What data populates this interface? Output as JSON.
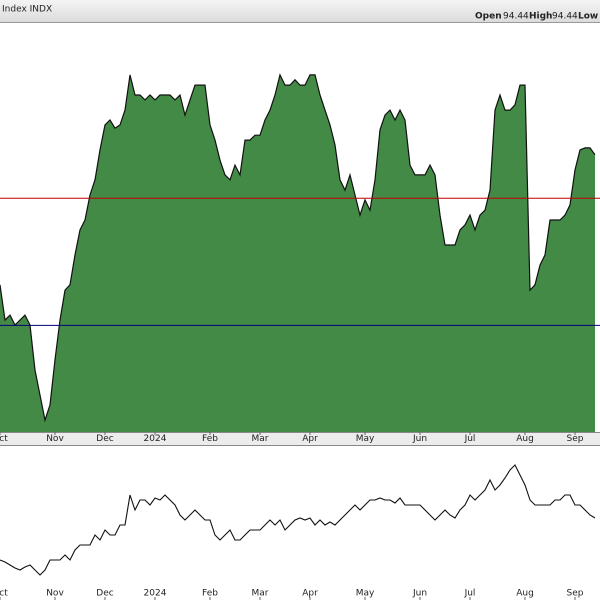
{
  "header": {
    "symbol": "Index INDX",
    "open_label": "Open",
    "open": 94.44,
    "high_label": "High",
    "high": 94.44,
    "low_label": "Low"
  },
  "chart_data": [
    {
      "type": "area",
      "color": "#428a46",
      "line_color": "#111111",
      "ylim": [
        0,
        100
      ],
      "hlines": [
        {
          "value": 57,
          "color": "#c00000"
        },
        {
          "value": 26,
          "color": "#00007a"
        }
      ],
      "categories": [
        "Oct",
        null,
        null,
        null,
        null,
        null,
        null,
        null,
        null,
        null,
        null,
        "Nov",
        null,
        null,
        null,
        null,
        null,
        null,
        null,
        null,
        null,
        "Dec",
        null,
        null,
        null,
        null,
        null,
        null,
        null,
        null,
        null,
        "2024",
        null,
        null,
        null,
        null,
        null,
        null,
        null,
        null,
        null,
        null,
        "Feb",
        null,
        null,
        null,
        null,
        null,
        null,
        null,
        null,
        null,
        "Mar",
        null,
        null,
        null,
        null,
        null,
        null,
        null,
        null,
        null,
        "Apr",
        null,
        null,
        null,
        null,
        null,
        null,
        null,
        null,
        null,
        null,
        "May",
        null,
        null,
        null,
        null,
        null,
        null,
        null,
        null,
        null,
        null,
        "Jun",
        null,
        null,
        null,
        null,
        null,
        null,
        null,
        null,
        null,
        "Jul",
        null,
        null,
        null,
        null,
        null,
        null,
        null,
        null,
        null,
        null,
        "Aug",
        null,
        null,
        null,
        null,
        null,
        null,
        null,
        null,
        null,
        "Sep",
        null,
        null,
        null,
        null
      ],
      "values": [
        35.9,
        27.3,
        28.5,
        26.1,
        27.3,
        28.5,
        26.1,
        15.1,
        9.0,
        2.9,
        6.6,
        17.6,
        27.3,
        34.6,
        35.9,
        43.2,
        49.3,
        51.7,
        57.8,
        61.5,
        68.8,
        74.9,
        76.1,
        74.1,
        74.9,
        78.5,
        87.1,
        82.2,
        82.2,
        81.0,
        82.2,
        81.0,
        82.2,
        82.2,
        82.2,
        81.0,
        82.2,
        77.3,
        81.0,
        84.6,
        84.6,
        84.6,
        74.9,
        71.2,
        66.3,
        62.7,
        61.5,
        65.1,
        62.7,
        71.2,
        71.2,
        72.4,
        72.4,
        76.1,
        78.5,
        82.2,
        87.1,
        84.6,
        84.6,
        85.9,
        84.6,
        84.6,
        87.1,
        87.1,
        82.2,
        78.5,
        74.9,
        70.0,
        61.5,
        59.0,
        62.7,
        57.8,
        52.9,
        56.6,
        54.1,
        61.5,
        73.7,
        77.3,
        78.5,
        76.1,
        78.5,
        76.1,
        65.1,
        62.7,
        62.7,
        62.7,
        65.1,
        62.7,
        52.9,
        45.6,
        45.6,
        45.6,
        49.3,
        50.5,
        52.9,
        49.3,
        52.9,
        54.1,
        59.0,
        78.5,
        82.2,
        78.5,
        78.5,
        79.8,
        84.6,
        84.6,
        34.6,
        35.9,
        40.7,
        43.2,
        51.7,
        51.7,
        51.7,
        52.9,
        55.4,
        63.9,
        68.8,
        69.3,
        69.3,
        67.6
      ]
    },
    {
      "type": "line",
      "color": "#111111",
      "ylim": [
        0,
        155
      ],
      "values": [
        40,
        38,
        35,
        32,
        30,
        33,
        35,
        30,
        25,
        30,
        40,
        40,
        40,
        45,
        40,
        50,
        55,
        55,
        55,
        65,
        60,
        70,
        65,
        65,
        75,
        75,
        105,
        90,
        100,
        100,
        95,
        102,
        100,
        105,
        100,
        95,
        85,
        80,
        85,
        90,
        85,
        80,
        80,
        65,
        60,
        65,
        70,
        60,
        60,
        65,
        70,
        70,
        70,
        75,
        80,
        75,
        80,
        70,
        75,
        80,
        82,
        80,
        82,
        75,
        80,
        75,
        78,
        75,
        80,
        85,
        90,
        95,
        90,
        95,
        100,
        100,
        102,
        100,
        100,
        97,
        102,
        95,
        95,
        95,
        95,
        90,
        85,
        80,
        85,
        90,
        85,
        82,
        90,
        95,
        105,
        100,
        105,
        110,
        120,
        110,
        115,
        122,
        130,
        135,
        125,
        115,
        100,
        95,
        95,
        95,
        95,
        100,
        100,
        105,
        105,
        95,
        95,
        90,
        85,
        82
      ]
    }
  ]
}
